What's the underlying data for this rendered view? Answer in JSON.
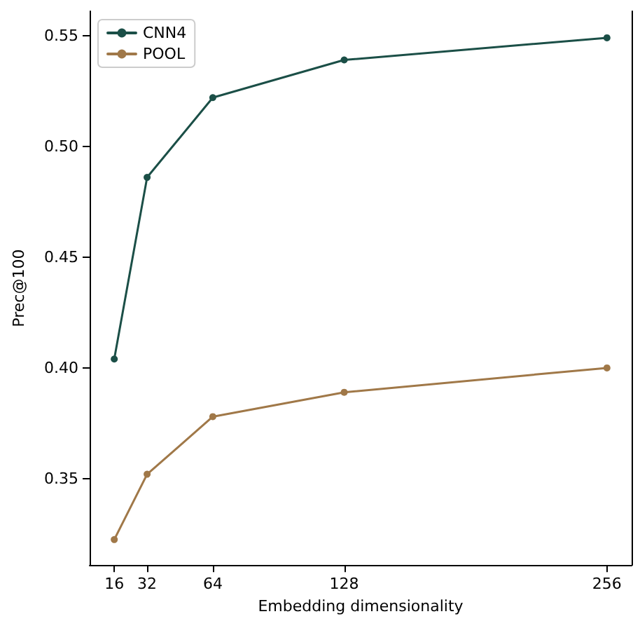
{
  "chart_data": {
    "type": "line",
    "xlabel": "Embedding dimensionality",
    "ylabel": "Prec@100",
    "x": [
      16,
      32,
      64,
      128,
      256
    ],
    "series": [
      {
        "name": "CNN4",
        "color": "#1b4f47",
        "values": [
          0.404,
          0.486,
          0.522,
          0.539,
          0.549
        ]
      },
      {
        "name": "POOL",
        "color": "#a07848",
        "values": [
          0.3225,
          0.352,
          0.378,
          0.389,
          0.4
        ]
      }
    ],
    "xlim": [
      4,
      268
    ],
    "xticks": [
      16,
      32,
      64,
      128,
      256
    ],
    "ylim": [
      0.311,
      0.561
    ],
    "yticks": [
      0.35,
      {
        "value": 0.4,
        "label": "0.40"
      },
      0.45,
      {
        "value": 0.5,
        "label": "0.50"
      },
      0.55
    ],
    "grid": false,
    "legend": "top left",
    "marker": "circle",
    "line_style": "solid"
  }
}
